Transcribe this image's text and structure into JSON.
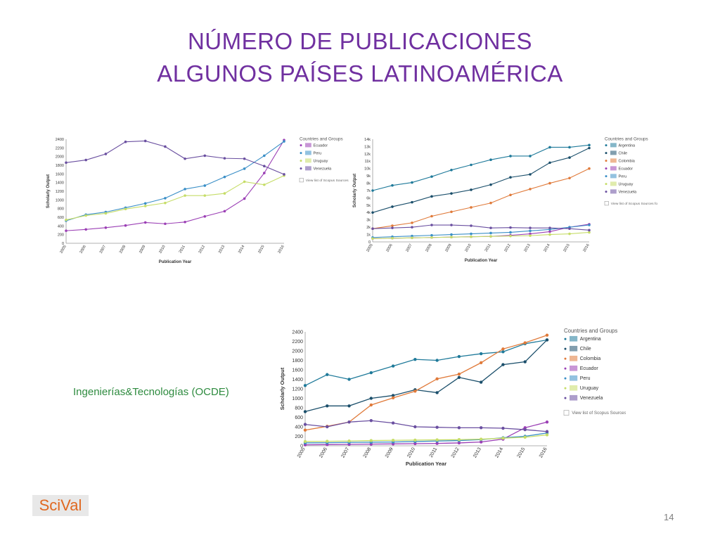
{
  "slide": {
    "title_line1": "NÚMERO DE PUBLICACIONES",
    "title_line2": "ALGUNOS PAÍSES LATINOAMÉRICA",
    "subtitle": "Ingenierías&Tecnologías (OCDE)",
    "logo": "SciVal",
    "page_number": "14"
  },
  "colors": {
    "title": "#7030a0",
    "subtitle": "#2e8b3f",
    "Argentina": "#1f7a9a",
    "Chile": "#1b4f6b",
    "Colombia": "#e07a3a",
    "Ecuador": "#9b3fb5",
    "Peru": "#3a8fc7",
    "Uruguay": "#c6dd68",
    "Venezuela": "#6a4fa0"
  },
  "chart_data": [
    {
      "type": "line",
      "xlabel": "Publication Year",
      "ylabel": "Scholarly Output",
      "legend_title": "Countries and Groups",
      "legend_footer": "View list of Scopus Sources",
      "x": [
        "2005",
        "2006",
        "2007",
        "2008",
        "2009",
        "2010",
        "2011",
        "2012",
        "2013",
        "2014",
        "2015",
        "2016"
      ],
      "yticks": [
        "0",
        "200",
        "400",
        "600",
        "800",
        "1000",
        "1200",
        "1400",
        "1600",
        "1800",
        "2000",
        "2200",
        "2400"
      ],
      "ylim": [
        0,
        2400
      ],
      "series": [
        {
          "name": "Ecuador",
          "values": [
            290,
            320,
            360,
            410,
            480,
            450,
            490,
            620,
            740,
            1030,
            1620,
            2380
          ]
        },
        {
          "name": "Peru",
          "values": [
            520,
            660,
            720,
            820,
            920,
            1040,
            1250,
            1330,
            1530,
            1720,
            2020,
            2350
          ]
        },
        {
          "name": "Uruguay",
          "values": [
            540,
            640,
            690,
            790,
            860,
            930,
            1100,
            1100,
            1150,
            1420,
            1350,
            1560
          ]
        },
        {
          "name": "Venezuela",
          "values": [
            1860,
            1920,
            2060,
            2340,
            2360,
            2230,
            1950,
            2020,
            1960,
            1950,
            1780,
            1590
          ]
        }
      ]
    },
    {
      "type": "line",
      "xlabel": "Publication Year",
      "ylabel": "Scholarly Output",
      "legend_title": "Countries and Groups",
      "legend_footer": "View list of Scopus Sources fo",
      "x": [
        "2005",
        "2006",
        "2007",
        "2008",
        "2009",
        "2010",
        "2011",
        "2012",
        "2013",
        "2014",
        "2015",
        "2016"
      ],
      "yticks": [
        "0",
        "1k",
        "2k",
        "3k",
        "4k",
        "5k",
        "6k",
        "7k",
        "8k",
        "9k",
        "10k",
        "11k",
        "12k",
        "13k",
        "14k"
      ],
      "ylim": [
        0,
        14000
      ],
      "series": [
        {
          "name": "Argentina",
          "values": [
            7000,
            7700,
            8100,
            8900,
            9800,
            10500,
            11200,
            11700,
            11700,
            12900,
            12900,
            13200
          ]
        },
        {
          "name": "Chile",
          "values": [
            4000,
            4800,
            5400,
            6200,
            6600,
            7100,
            7800,
            8800,
            9200,
            10800,
            11500,
            12800
          ]
        },
        {
          "name": "Colombia",
          "values": [
            1800,
            2200,
            2600,
            3500,
            4100,
            4700,
            5300,
            6400,
            7200,
            8000,
            8700,
            10000
          ]
        },
        {
          "name": "Ecuador",
          "values": [
            450,
            500,
            550,
            600,
            650,
            700,
            750,
            900,
            1100,
            1400,
            2000,
            2400
          ]
        },
        {
          "name": "Peru",
          "values": [
            600,
            700,
            800,
            900,
            1000,
            1100,
            1200,
            1300,
            1500,
            1700,
            2000,
            2300
          ]
        },
        {
          "name": "Uruguay",
          "values": [
            450,
            500,
            550,
            600,
            650,
            700,
            750,
            800,
            850,
            1000,
            1100,
            1300
          ]
        },
        {
          "name": "Venezuela",
          "values": [
            1800,
            1900,
            2000,
            2300,
            2300,
            2200,
            1900,
            1950,
            1900,
            1900,
            1800,
            1600
          ]
        }
      ]
    },
    {
      "type": "line",
      "xlabel": "Publication Year",
      "ylabel": "Scholarly Output",
      "legend_title": "Countries and Groups",
      "legend_footer": "View list of Scopus Sources",
      "x": [
        "2005",
        "2006",
        "2007",
        "2008",
        "2009",
        "2010",
        "2011",
        "2012",
        "2013",
        "2014",
        "2015",
        "2016"
      ],
      "yticks": [
        "0",
        "200",
        "400",
        "600",
        "800",
        "1000",
        "1200",
        "1400",
        "1600",
        "1800",
        "2000",
        "2200",
        "2400"
      ],
      "ylim": [
        0,
        2400
      ],
      "series": [
        {
          "name": "Argentina",
          "values": [
            1270,
            1500,
            1400,
            1540,
            1680,
            1820,
            1800,
            1880,
            1940,
            1980,
            2150,
            2230
          ]
        },
        {
          "name": "Chile",
          "values": [
            720,
            840,
            840,
            1000,
            1060,
            1180,
            1120,
            1440,
            1340,
            1710,
            1770,
            2230
          ]
        },
        {
          "name": "Colombia",
          "values": [
            330,
            410,
            500,
            860,
            1010,
            1150,
            1410,
            1510,
            1750,
            2040,
            2170,
            2330
          ]
        },
        {
          "name": "Ecuador",
          "values": [
            20,
            25,
            30,
            35,
            40,
            45,
            50,
            60,
            80,
            140,
            380,
            500
          ]
        },
        {
          "name": "Peru",
          "values": [
            60,
            65,
            70,
            75,
            80,
            90,
            100,
            110,
            130,
            170,
            200,
            270
          ]
        },
        {
          "name": "Uruguay",
          "values": [
            90,
            95,
            100,
            110,
            115,
            120,
            125,
            130,
            140,
            160,
            180,
            230
          ]
        },
        {
          "name": "Venezuela",
          "values": [
            450,
            400,
            500,
            530,
            480,
            400,
            390,
            380,
            380,
            370,
            340,
            300
          ]
        }
      ]
    }
  ]
}
